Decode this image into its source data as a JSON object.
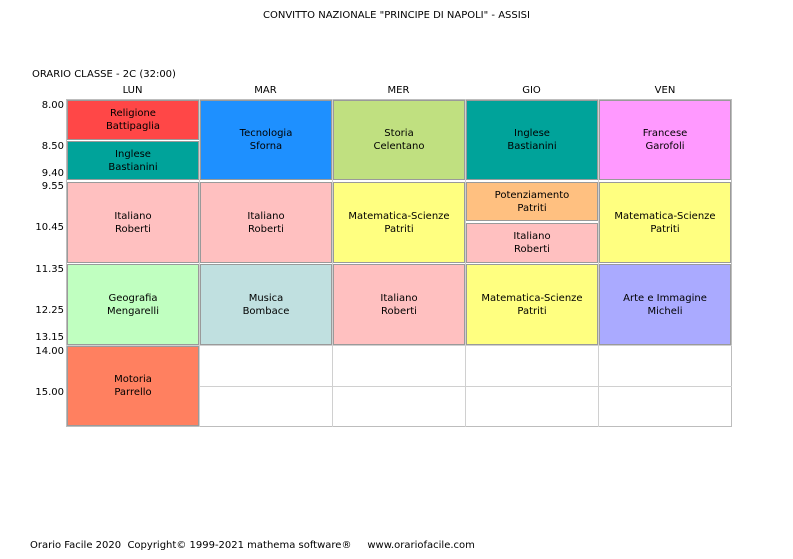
{
  "header": {
    "title": "CONVITTO NAZIONALE \"PRINCIPE DI NAPOLI\" - ASSISI",
    "class_label": "ORARIO CLASSE   -  2C  (32:00)"
  },
  "days": [
    "LUN",
    "MAR",
    "MER",
    "GIO",
    "VEN"
  ],
  "times": [
    "8.00",
    "8.50",
    "9.40",
    "9.55",
    "10.45",
    "11.35",
    "12.25",
    "13.15",
    "14.00",
    "15.00"
  ],
  "lessons": {
    "lun_1": {
      "subject": "Religione",
      "teacher": "Battipaglia",
      "color": "#ff4747"
    },
    "lun_2": {
      "subject": "Inglese",
      "teacher": "Bastianini",
      "color": "#00a39a"
    },
    "lun_3": {
      "subject": "Italiano",
      "teacher": "Roberti",
      "color": "#ffc0c0"
    },
    "lun_4": {
      "subject": "Geografia",
      "teacher": "Mengarelli",
      "color": "#c0ffc0"
    },
    "lun_5": {
      "subject": "Motoria",
      "teacher": "Parrello",
      "color": "#ff8060"
    },
    "mar_1": {
      "subject": "Tecnologia",
      "teacher": "Sforna",
      "color": "#1e90ff"
    },
    "mar_2": {
      "subject": "Italiano",
      "teacher": "Roberti",
      "color": "#ffc0c0"
    },
    "mar_3": {
      "subject": "Musica",
      "teacher": "Bombace",
      "color": "#c0e0e0"
    },
    "mer_1": {
      "subject": "Storia",
      "teacher": "Celentano",
      "color": "#c0e080"
    },
    "mer_2": {
      "subject": "Matematica-Scienze",
      "teacher": "Patriti",
      "color": "#ffff80"
    },
    "mer_3": {
      "subject": "Italiano",
      "teacher": "Roberti",
      "color": "#ffc0c0"
    },
    "gio_1": {
      "subject": "Inglese",
      "teacher": "Bastianini",
      "color": "#00a39a"
    },
    "gio_2": {
      "subject": "Potenziamento",
      "teacher": "Patriti",
      "color": "#ffc080"
    },
    "gio_3": {
      "subject": "Italiano",
      "teacher": "Roberti",
      "color": "#ffc0c0"
    },
    "gio_4": {
      "subject": "Matematica-Scienze",
      "teacher": "Patriti",
      "color": "#ffff80"
    },
    "ven_1": {
      "subject": "Francese",
      "teacher": "Garofoli",
      "color": "#ff99ff"
    },
    "ven_2": {
      "subject": "Matematica-Scienze",
      "teacher": "Patriti",
      "color": "#ffff80"
    },
    "ven_3": {
      "subject": "Arte e Immagine",
      "teacher": "Micheli",
      "color": "#aaaaff"
    }
  },
  "footer": "Orario Facile 2020  Copyright© 1999-2021 mathema software®     www.orariofacile.com"
}
